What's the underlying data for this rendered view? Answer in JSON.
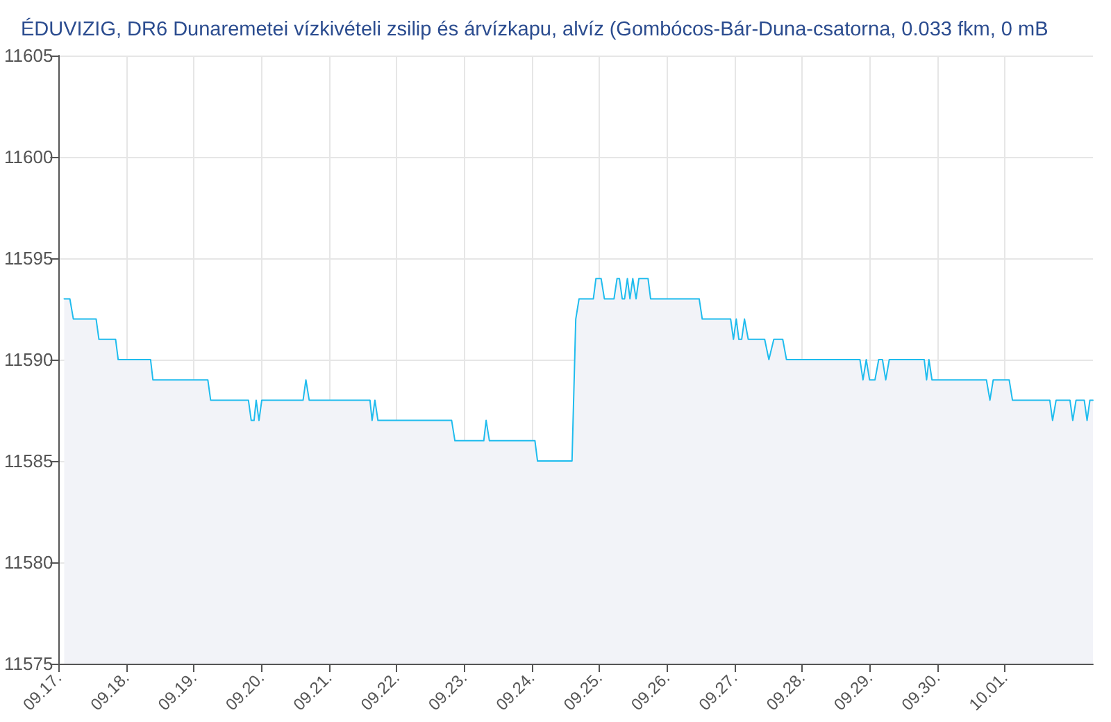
{
  "chart_data": {
    "type": "area",
    "title": "ÉDUVIZIG, DR6 Dunaremetei vízkivételi zsilip és árvízkapu, alvíz (Gombócos-Bár-Duna-csatorna, 0.033 fkm, 0 mB",
    "x": [
      "--09-17T02:00",
      "--09-17T04:00",
      "--09-17T05:15",
      "--09-17T13:20",
      "--09-17T14:20",
      "--09-17T20:15",
      "--09-17T21:10",
      "--09-18T08:40",
      "--09-18T09:30",
      "--09-19T05:00",
      "--09-19T06:00",
      "--09-19T19:25",
      "--09-19T20:25",
      "--09-19T21:25",
      "--09-19T22:10",
      "--09-19T23:10",
      "--09-20T00:10",
      "--09-20T14:50",
      "--09-20T15:50",
      "--09-20T17:00",
      "--09-21T14:35",
      "--09-21T15:20",
      "--09-21T16:20",
      "--09-21T17:25",
      "--09-22T19:35",
      "--09-22T20:45",
      "--09-23T07:00",
      "--09-23T07:50",
      "--09-23T09:00",
      "--09-24T01:10",
      "--09-24T02:05",
      "--09-24T14:20",
      "--09-24T15:40",
      "--09-24T16:50",
      "--09-24T21:55",
      "--09-24T22:50",
      "--09-25T00:40",
      "--09-25T01:50",
      "--09-25T05:15",
      "--09-25T06:20",
      "--09-25T07:10",
      "--09-25T08:10",
      "--09-25T09:00",
      "--09-25T10:00",
      "--09-25T10:55",
      "--09-25T11:55",
      "--09-25T13:05",
      "--09-25T14:05",
      "--09-25T17:20",
      "--09-25T18:15",
      "--09-26T11:30",
      "--09-26T12:35",
      "--09-26T22:40",
      "--09-26T23:40",
      "--09-27T00:40",
      "--09-27T01:35",
      "--09-27T02:35",
      "--09-27T03:35",
      "--09-27T04:55",
      "--09-27T10:45",
      "--09-27T12:15",
      "--09-27T14:00",
      "--09-27T17:10",
      "--09-27T18:30",
      "--09-28T20:35",
      "--09-28T21:40",
      "--09-28T22:50",
      "--09-29T00:00",
      "--09-29T01:55",
      "--09-29T03:15",
      "--09-29T04:35",
      "--09-29T05:45",
      "--09-29T07:00",
      "--09-29T19:25",
      "--09-29T20:15",
      "--09-29T21:05",
      "--09-29T22:10",
      "--09-30T17:30",
      "--09-30T18:45",
      "--09-30T19:55",
      "--10-01T01:35",
      "--10-01T02:45",
      "--10-01T16:00",
      "--10-01T17:00",
      "--10-01T18:15",
      "--10-01T23:10",
      "--10-02T00:10",
      "--10-02T01:20",
      "--10-02T04:15",
      "--10-02T05:15",
      "--10-02T06:15",
      "--10-02T07:20"
    ],
    "values": [
      11593,
      11593,
      11592,
      11592,
      11591,
      11591,
      11590,
      11590,
      11589,
      11589,
      11588,
      11588,
      11587,
      11587,
      11588,
      11587,
      11588,
      11588,
      11589,
      11588,
      11588,
      11587,
      11588,
      11587,
      11587,
      11586,
      11586,
      11587,
      11586,
      11586,
      11585,
      11585,
      11592,
      11593,
      11593,
      11594,
      11594,
      11593,
      11593,
      11594,
      11594,
      11593,
      11593,
      11594,
      11593,
      11594,
      11593,
      11594,
      11594,
      11593,
      11593,
      11592,
      11592,
      11591,
      11592,
      11591,
      11591,
      11592,
      11591,
      11591,
      11590,
      11591,
      11591,
      11590,
      11590,
      11589,
      11590,
      11589,
      11589,
      11590,
      11590,
      11589,
      11590,
      11590,
      11589,
      11590,
      11589,
      11589,
      11588,
      11589,
      11589,
      11588,
      11588,
      11587,
      11588,
      11588,
      11587,
      11588,
      11588,
      11587,
      11588,
      11588
    ],
    "color": "#1fbcee",
    "xlim": [
      "--09-17T00:00",
      "--10-02T07:20"
    ],
    "xticks": [
      {
        "value": "--09-17",
        "label": "09.17."
      },
      {
        "value": "--09-18",
        "label": "09.18."
      },
      {
        "value": "--09-19",
        "label": "09.19."
      },
      {
        "value": "--09-20",
        "label": "09.20."
      },
      {
        "value": "--09-21",
        "label": "09.21."
      },
      {
        "value": "--09-22",
        "label": "09.22."
      },
      {
        "value": "--09-23",
        "label": "09.23."
      },
      {
        "value": "--09-24",
        "label": "09.24."
      },
      {
        "value": "--09-25",
        "label": "09.25."
      },
      {
        "value": "--09-26",
        "label": "09.26."
      },
      {
        "value": "--09-27",
        "label": "09.27."
      },
      {
        "value": "--09-28",
        "label": "09.28."
      },
      {
        "value": "--09-29",
        "label": "09.29."
      },
      {
        "value": "--09-30",
        "label": "09.30."
      },
      {
        "value": "--10-01",
        "label": "10.01."
      }
    ],
    "ylim": [
      11575,
      11605
    ],
    "yticks": [
      11575,
      11580,
      11585,
      11590,
      11595,
      11600,
      11605
    ],
    "grid": true,
    "marker": "none"
  }
}
